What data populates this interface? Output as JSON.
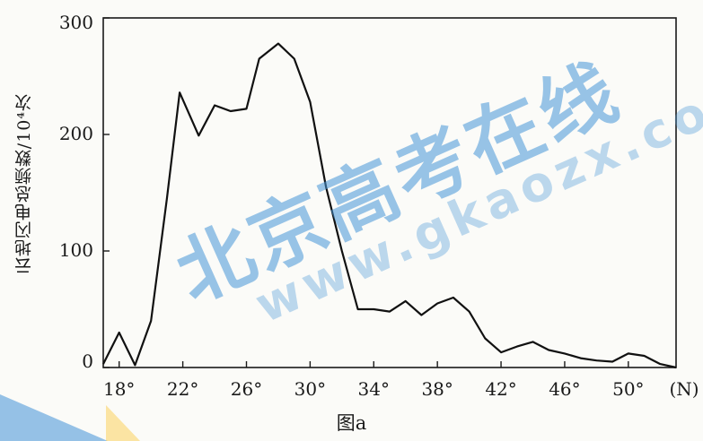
{
  "chart_data": {
    "type": "line",
    "title": "",
    "caption": "图a",
    "ylabel": "云地闪电总频数/10⁴次",
    "xlabel": "",
    "x_unit": "(N)",
    "xlim": [
      17,
      53
    ],
    "ylim": [
      0,
      300
    ],
    "x_ticks": [
      "18°",
      "22°",
      "26°",
      "30°",
      "34°",
      "38°",
      "42°",
      "46°",
      "50°"
    ],
    "x_tick_values": [
      18,
      22,
      26,
      30,
      34,
      38,
      42,
      46,
      50
    ],
    "y_ticks": [
      "0",
      "100",
      "200",
      "300"
    ],
    "y_tick_values": [
      0,
      100,
      200,
      300
    ],
    "grid": false,
    "series": [
      {
        "x": [
          17,
          18,
          19,
          20,
          21,
          21.8,
          23,
          24,
          25,
          26,
          26.8,
          28,
          29,
          30,
          31,
          32,
          33,
          34,
          35,
          36,
          37,
          38,
          39,
          40,
          41,
          42,
          43,
          44,
          45,
          46,
          47,
          48,
          49,
          50,
          51,
          52,
          53
        ],
        "y": [
          3,
          30,
          2,
          40,
          145,
          236,
          199,
          225,
          220,
          222,
          265,
          278,
          265,
          228,
          155,
          100,
          50,
          50,
          48,
          57,
          45,
          55,
          60,
          48,
          25,
          13,
          18,
          22,
          15,
          12,
          8,
          6,
          5,
          12,
          10,
          3,
          -5
        ]
      }
    ]
  },
  "watermark": {
    "brand": "北京高考在线",
    "url": "www.gkaozx.com"
  }
}
